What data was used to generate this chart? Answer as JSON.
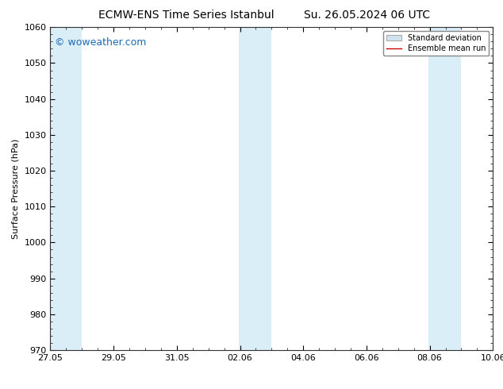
{
  "title_left": "ECMW-ENS Time Series Istanbul",
  "title_right": "Su. 26.05.2024 06 UTC",
  "ylabel": "Surface Pressure (hPa)",
  "ylim": [
    970,
    1060
  ],
  "yticks": [
    970,
    980,
    990,
    1000,
    1010,
    1020,
    1030,
    1040,
    1050,
    1060
  ],
  "xtick_labels": [
    "27.05",
    "29.05",
    "31.05",
    "02.06",
    "04.06",
    "06.06",
    "08.06",
    "10.06"
  ],
  "xtick_positions": [
    0,
    2,
    4,
    6,
    8,
    10,
    12,
    14
  ],
  "xlim": [
    0,
    14
  ],
  "shaded_bands": [
    {
      "x_start": -0.05,
      "x_end": 1.0
    },
    {
      "x_start": 5.95,
      "x_end": 7.0
    },
    {
      "x_start": 11.95,
      "x_end": 13.0
    }
  ],
  "shade_color": "#daeef8",
  "watermark_text": "© woweather.com",
  "watermark_color": "#1a6bb5",
  "watermark_fontsize": 9,
  "legend_std_label": "Standard deviation",
  "legend_ens_label": "Ensemble mean run",
  "legend_std_color": "#d0e4f0",
  "legend_ens_color": "#cc0000",
  "title_fontsize": 10,
  "axis_fontsize": 8,
  "ylabel_fontsize": 8,
  "bg_color": "#ffffff",
  "axes_bg_color": "#ffffff",
  "spine_color": "#333333",
  "figure_width": 6.34,
  "figure_height": 4.9,
  "figure_dpi": 100
}
